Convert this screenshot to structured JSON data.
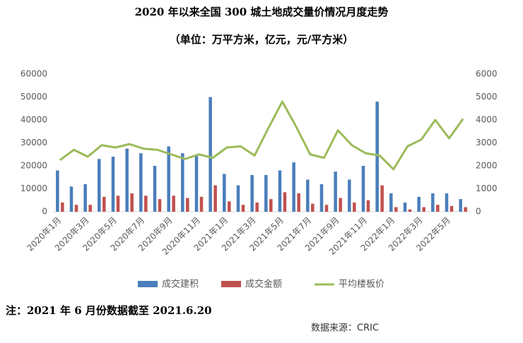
{
  "chart_data": {
    "type": "bar-line",
    "title": "2020 年以来全国 300 城土地成交量价情况月度走势",
    "subtitle": "（单位：万平方米，亿元，元/平方米）",
    "note": "注：2021 年 6 月份数据截至 2021.6.20",
    "source": "数据来源：CRIC",
    "categories": [
      "2020年1月",
      null,
      "2020年3月",
      null,
      "2020年5月",
      null,
      "2020年7月",
      null,
      "2020年9月",
      null,
      "2020年11月",
      null,
      "2021年1月",
      null,
      "2021年3月",
      null,
      "2021年5月",
      null,
      "2021年7月",
      null,
      "2021年9月",
      null,
      "2021年11月",
      null,
      "2022年1月",
      null,
      "2022年3月",
      null,
      "2022年5月",
      null
    ],
    "series": [
      {
        "name": "成交建积",
        "type": "bar",
        "color": "#4a7ebb",
        "values": [
          18000,
          11000,
          12000,
          23000,
          24000,
          27500,
          25500,
          20000,
          28500,
          25500,
          24500,
          50000,
          16500,
          11500,
          16000,
          16000,
          18000,
          21500,
          14000,
          12000,
          17500,
          14000,
          20000,
          48000,
          8000,
          4000,
          6500,
          8000,
          8000,
          5500
        ]
      },
      {
        "name": "成交金额",
        "type": "bar",
        "color": "#c0504d",
        "values": [
          4000,
          3000,
          3000,
          6500,
          7000,
          8000,
          7000,
          5500,
          7000,
          6000,
          6500,
          11500,
          4500,
          3000,
          4000,
          5500,
          8500,
          8000,
          3500,
          3000,
          6000,
          4000,
          5000,
          11500,
          2000,
          1000,
          2000,
          3000,
          2500,
          2000
        ]
      },
      {
        "name": "平均楼板价",
        "type": "line",
        "axis": "y2",
        "color": "#9bbb59",
        "values": [
          2250,
          2700,
          2400,
          2900,
          2800,
          2950,
          2750,
          2700,
          2500,
          2300,
          2500,
          2350,
          2800,
          2850,
          2450,
          3650,
          4800,
          3700,
          2500,
          2350,
          3550,
          2900,
          2550,
          2450,
          1850,
          2850,
          3150,
          4000,
          3200,
          4050
        ]
      }
    ],
    "ylim": [
      0,
      60000
    ],
    "yticks": [
      0,
      10000,
      20000,
      30000,
      40000,
      50000,
      60000
    ],
    "y2lim": [
      0,
      6000
    ],
    "y2ticks": [
      0,
      1000,
      2000,
      3000,
      4000,
      5000,
      6000
    ],
    "grid": false
  }
}
